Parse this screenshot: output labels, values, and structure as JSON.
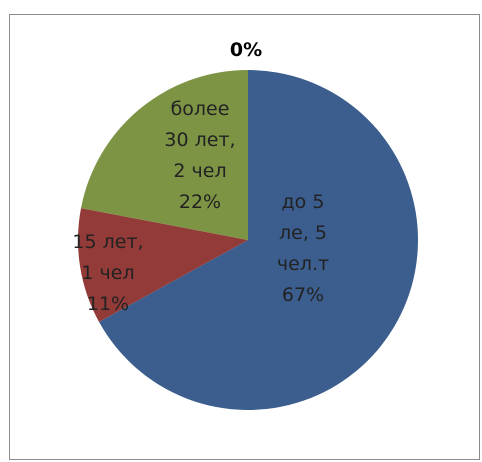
{
  "chart_data": {
    "type": "pie",
    "title": "",
    "slices": [
      {
        "label_lines": [
          "до 5",
          "ле, 5",
          "чел.т",
          "67%"
        ],
        "value": 67,
        "color": "#3b5e8f"
      },
      {
        "label_lines": [
          "15 лет,",
          "1 чел",
          "11%"
        ],
        "value": 11,
        "color": "#923b38"
      },
      {
        "label_lines": [
          "более",
          "30 лет,",
          "2 чел",
          "22%"
        ],
        "value": 22,
        "color": "#7e9445"
      },
      {
        "label_lines": [
          "0%"
        ],
        "value": 0,
        "color": "#ffffff"
      }
    ],
    "start_angle_deg": 0,
    "direction": "clockwise",
    "legend": "none"
  }
}
